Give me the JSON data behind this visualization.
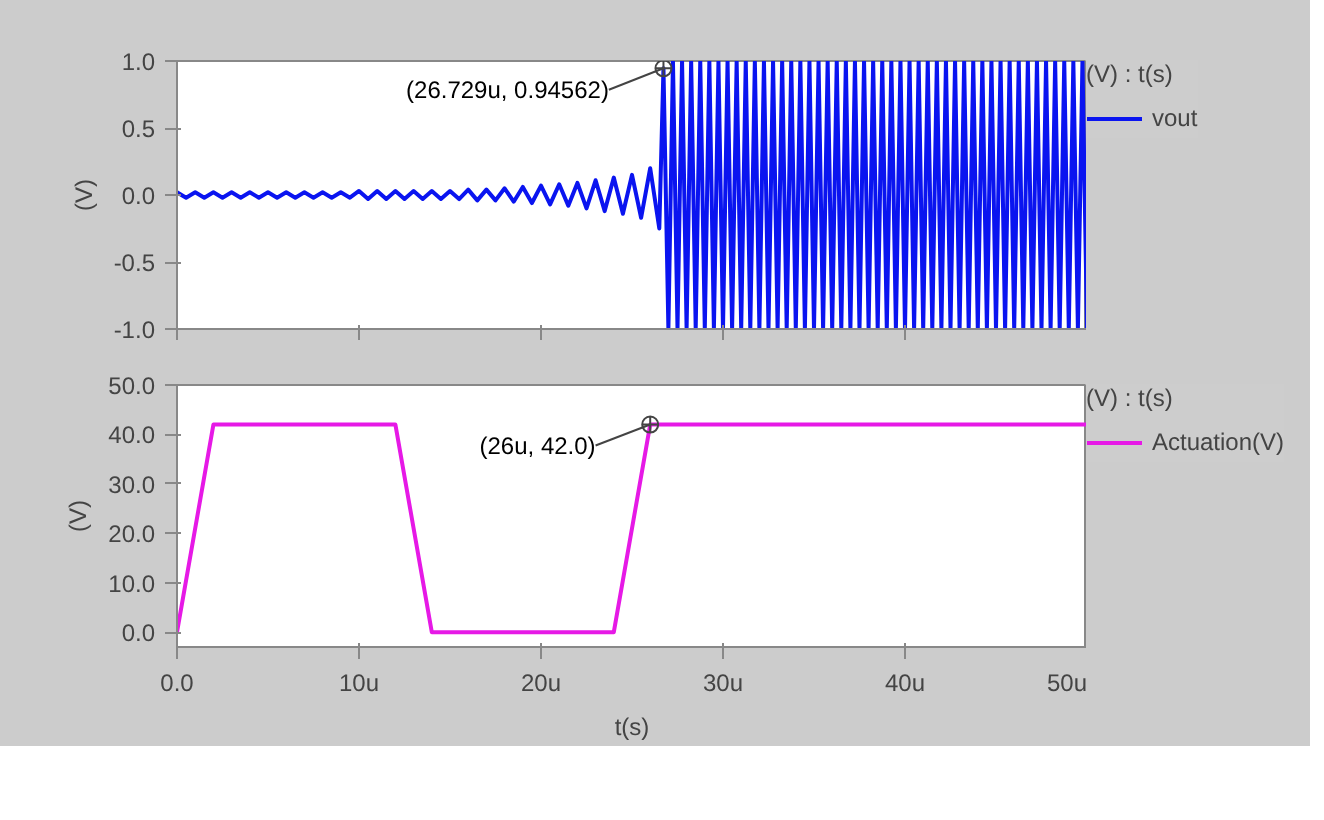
{
  "chart_data": [
    {
      "type": "line",
      "ylabel": "(V)",
      "legend_title": "(V) : t(s)",
      "legend": "right",
      "grid": false,
      "tick_labels": "y",
      "xlim": [
        0,
        50
      ],
      "xticks": [
        {
          "value": 0,
          "label": null
        },
        {
          "value": 10,
          "label": null
        },
        {
          "value": 20,
          "label": null
        },
        {
          "value": 30,
          "label": null
        },
        {
          "value": 40,
          "label": null
        },
        {
          "value": 50,
          "label": null
        }
      ],
      "ylim": [
        -1,
        1
      ],
      "yticks": [
        {
          "value": -1,
          "label": "-1.0"
        },
        {
          "value": -0.5,
          "label": "-0.5"
        },
        {
          "value": 0,
          "label": "0.0"
        },
        {
          "value": 0.5,
          "label": "0.5"
        },
        {
          "value": 1,
          "label": "1.0"
        }
      ],
      "annotations": [
        {
          "text": "(26.729u, 0.94562)",
          "x": 26.729,
          "y": 0.94562
        }
      ],
      "series": [
        {
          "name": "vout",
          "color": "#0a14f0",
          "x": [
            0,
            0.5,
            1,
            1.5,
            2,
            2.5,
            3,
            3.5,
            4,
            4.5,
            5,
            5.5,
            6,
            6.5,
            7,
            7.5,
            8,
            8.5,
            9,
            9.5,
            10,
            10.5,
            11,
            11.5,
            12,
            12.5,
            13,
            13.5,
            14,
            14.5,
            15,
            15.5,
            16,
            16.5,
            17,
            17.5,
            18,
            18.5,
            19,
            19.5,
            20,
            20.5,
            21,
            21.5,
            22,
            22.5,
            23,
            23.5,
            24,
            24.5,
            25,
            25.5,
            26,
            26.5,
            26.729,
            27,
            27.25,
            27.5,
            27.75,
            28,
            28.25,
            28.5,
            28.75,
            29,
            29.25,
            29.5,
            29.75,
            30,
            30.25,
            30.5,
            30.75,
            31,
            31.25,
            31.5,
            31.75,
            32,
            32.25,
            32.5,
            32.75,
            33,
            33.25,
            33.5,
            33.75,
            34,
            34.25,
            34.5,
            34.75,
            35,
            35.25,
            35.5,
            35.75,
            36,
            36.25,
            36.5,
            36.75,
            37,
            37.25,
            37.5,
            37.75,
            38,
            38.25,
            38.5,
            38.75,
            39,
            39.25,
            39.5,
            39.75,
            40,
            40.25,
            40.5,
            40.75,
            41,
            41.25,
            41.5,
            41.75,
            42,
            42.25,
            42.5,
            42.75,
            43,
            43.25,
            43.5,
            43.75,
            44,
            44.25,
            44.5,
            44.75,
            45,
            45.25,
            45.5,
            45.75,
            46,
            46.25,
            46.5,
            46.75,
            47,
            47.25,
            47.5,
            47.75,
            48,
            48.25,
            48.5,
            48.75,
            49,
            49.25,
            49.5,
            49.75,
            50
          ],
          "values": [
            0.02,
            -0.02,
            0.02,
            -0.02,
            0.02,
            -0.02,
            0.02,
            -0.02,
            0.02,
            -0.02,
            0.02,
            -0.02,
            0.02,
            -0.02,
            0.02,
            -0.02,
            0.02,
            -0.02,
            0.02,
            -0.02,
            0.03,
            -0.03,
            0.03,
            -0.03,
            0.03,
            -0.03,
            0.03,
            -0.03,
            0.03,
            -0.03,
            0.03,
            -0.03,
            0.04,
            -0.04,
            0.04,
            -0.04,
            0.05,
            -0.05,
            0.06,
            -0.06,
            0.07,
            -0.07,
            0.08,
            -0.08,
            0.09,
            -0.1,
            0.11,
            -0.12,
            0.13,
            -0.14,
            0.15,
            -0.17,
            0.2,
            -0.25,
            0.94562,
            -1,
            1,
            -1,
            1,
            -1,
            1,
            -1,
            1,
            -1,
            1,
            -1,
            1,
            -1,
            1,
            -1,
            1,
            -1,
            1,
            -1,
            1,
            -1,
            1,
            -1,
            1,
            -1,
            1,
            -1,
            1,
            -1,
            1,
            -1,
            1,
            -1,
            1,
            -1,
            1,
            -1,
            1,
            -1,
            1,
            -1,
            1,
            -1,
            1,
            -1,
            1,
            -1,
            1,
            -1,
            1,
            -1,
            1,
            -1,
            1,
            -1,
            1,
            -1,
            1,
            -1,
            1,
            -1,
            1,
            -1,
            1,
            -1,
            1,
            -1,
            1,
            -1,
            1,
            -1,
            1,
            -1,
            1,
            -1,
            1,
            -1,
            1,
            -1,
            1,
            -1,
            1,
            -1,
            1,
            -1,
            1,
            -1,
            1,
            -1,
            1,
            -1,
            1,
            -1
          ]
        }
      ]
    },
    {
      "type": "line",
      "xlabel": "t(s)",
      "ylabel": "(V)",
      "legend_title": "(V) : t(s)",
      "legend": "right",
      "grid": false,
      "xlim": [
        0,
        50
      ],
      "xticks": [
        {
          "value": 0,
          "label": "0.0"
        },
        {
          "value": 10,
          "label": "10u"
        },
        {
          "value": 20,
          "label": "20u"
        },
        {
          "value": 30,
          "label": "30u"
        },
        {
          "value": 40,
          "label": "40u"
        },
        {
          "value": 50,
          "label": "50u"
        }
      ],
      "ylim": [
        -3,
        50
      ],
      "yticks": [
        {
          "value": 0,
          "label": "0.0"
        },
        {
          "value": 10,
          "label": "10.0"
        },
        {
          "value": 20,
          "label": "20.0"
        },
        {
          "value": 30,
          "label": "30.0"
        },
        {
          "value": 40,
          "label": "40.0"
        },
        {
          "value": 50,
          "label": "50.0"
        }
      ],
      "annotations": [
        {
          "text": "(26u, 42.0)",
          "x": 26,
          "y": 42
        }
      ],
      "series": [
        {
          "name": "Actuation(V)",
          "color": "#e619e6",
          "x": [
            0,
            2,
            12,
            14,
            24,
            26,
            50
          ],
          "values": [
            0,
            42,
            42,
            0,
            0,
            42,
            42
          ]
        }
      ]
    }
  ]
}
